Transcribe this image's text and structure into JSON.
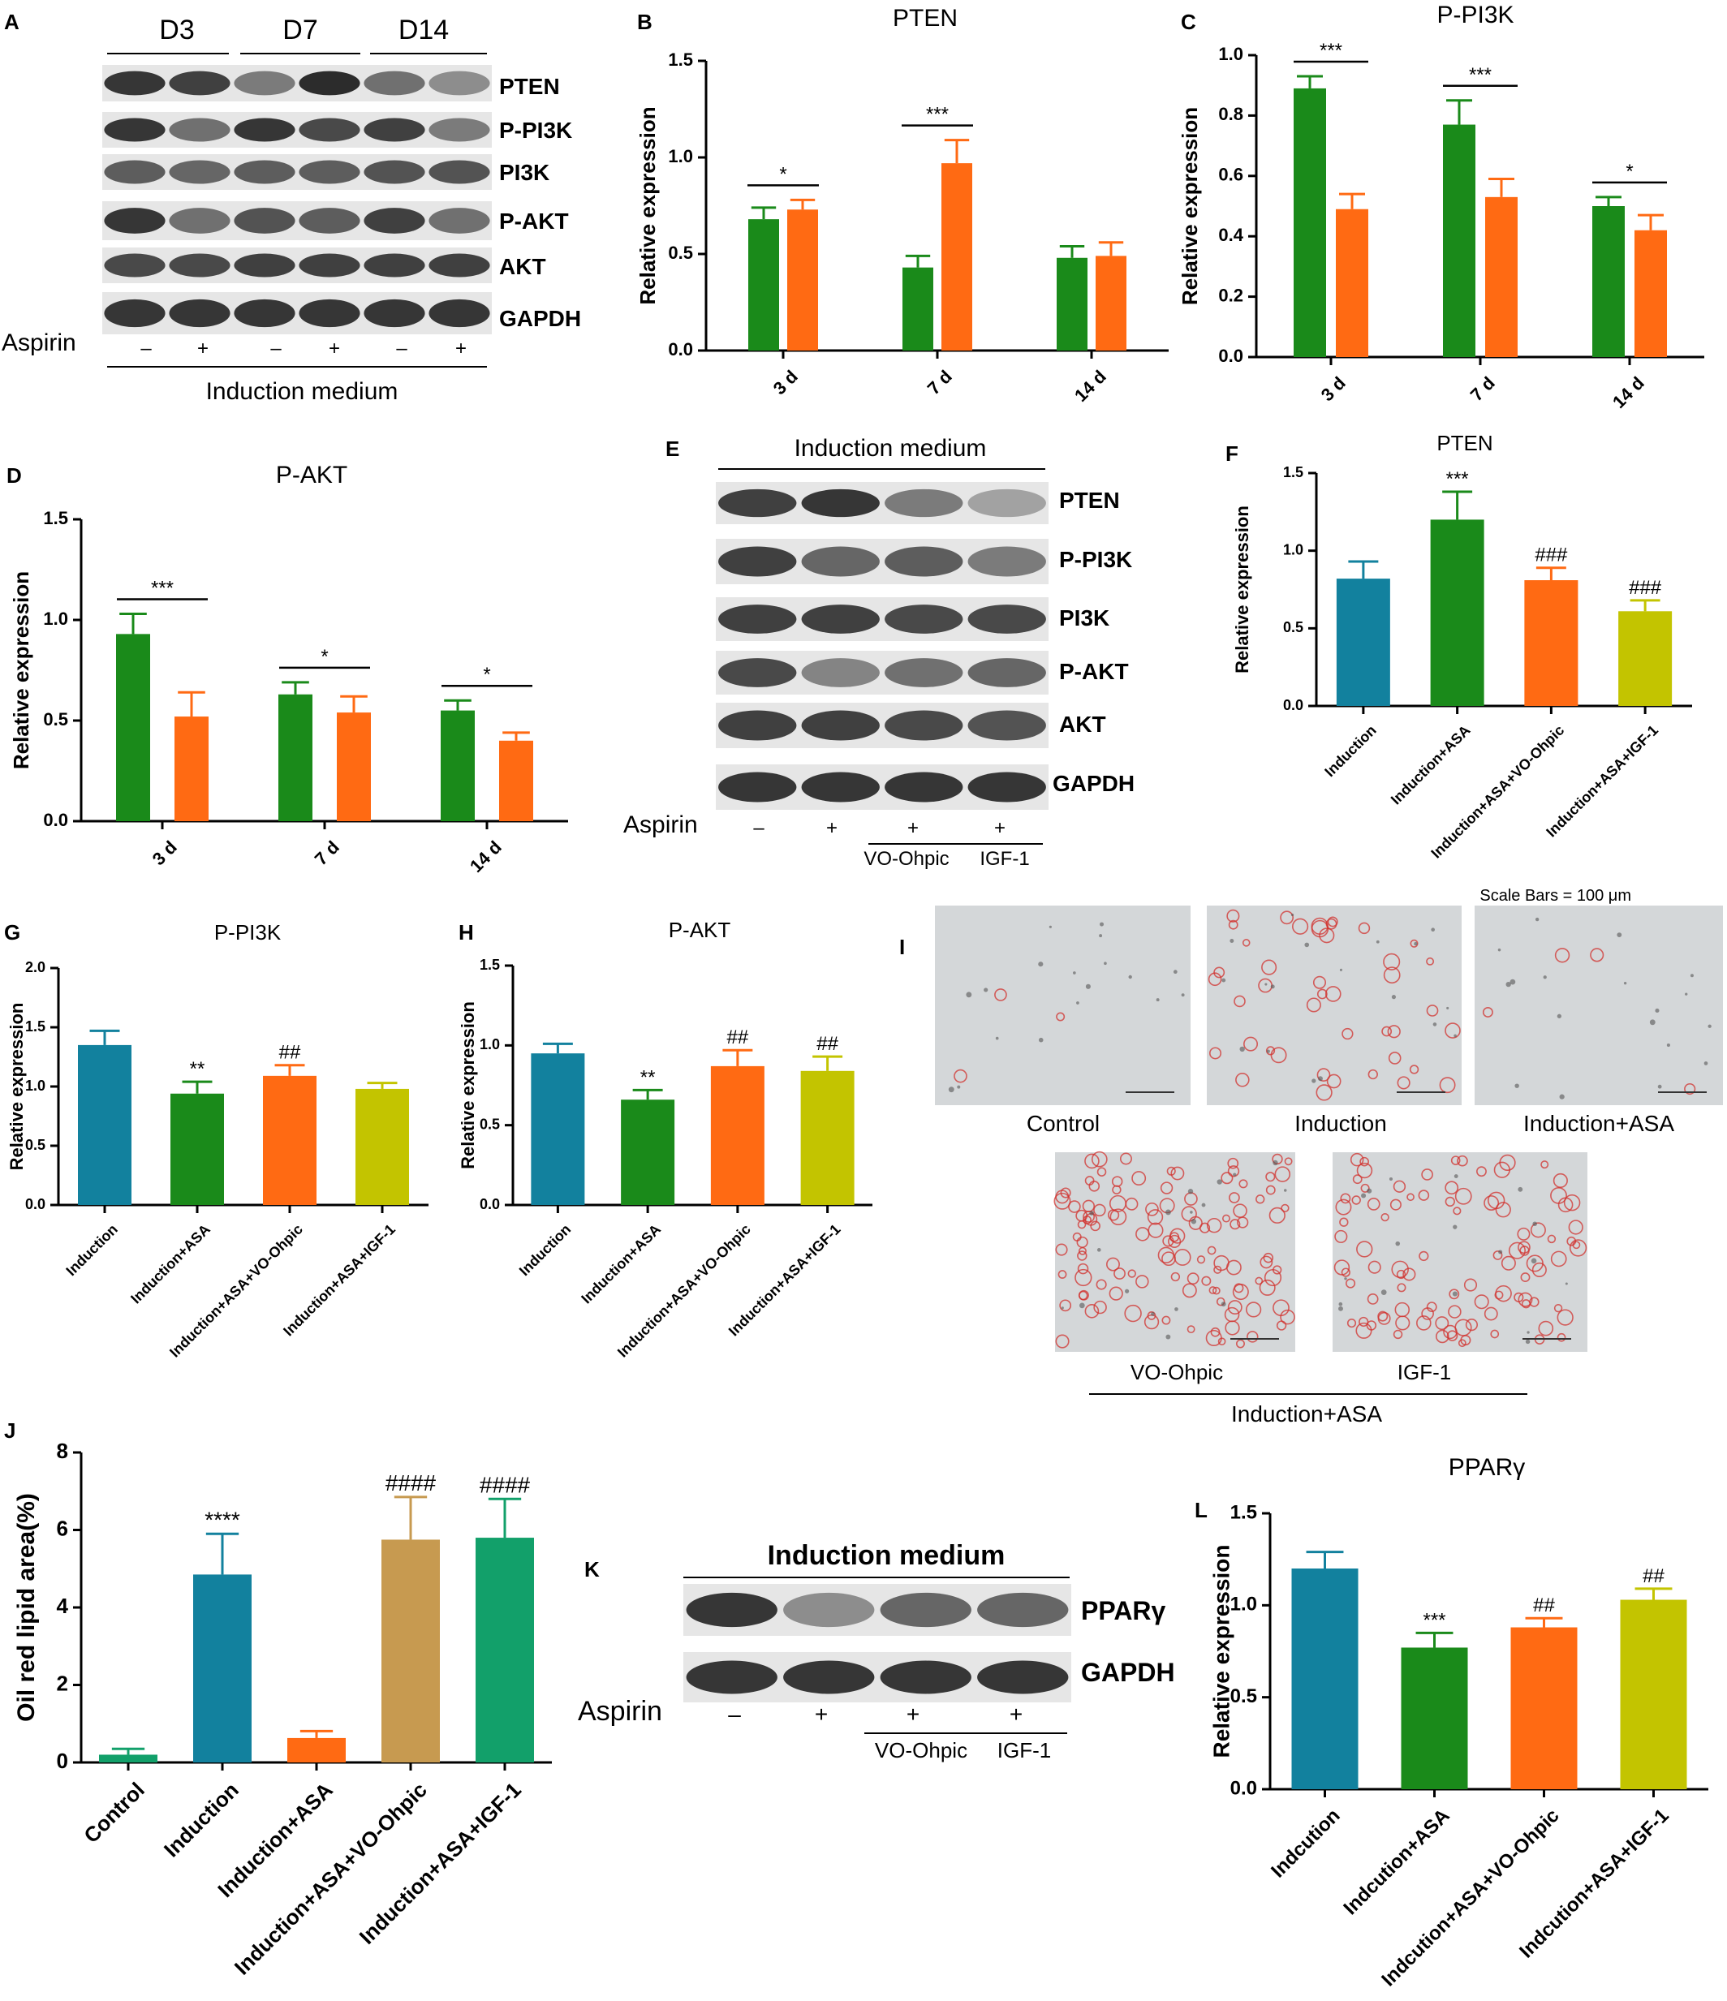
{
  "colors": {
    "green": "#1a8a1a",
    "orange": "#ff6a13",
    "teal": "#12819e",
    "olive": "#c3c400",
    "tan": "#c79a50",
    "seagreen": "#12a06a",
    "blot": "#222222",
    "micro_bg": "#d4d7d9",
    "stain": "#d2322d"
  },
  "panels": {
    "A": "A",
    "B": "B",
    "C": "C",
    "D": "D",
    "E": "E",
    "F": "F",
    "G": "G",
    "H": "H",
    "I": "I",
    "J": "J",
    "K": "K",
    "L": "L"
  },
  "blot_A": {
    "days": [
      "D3",
      "D7",
      "D14"
    ],
    "proteins": [
      "PTEN",
      "P-PI3K",
      "PI3K",
      "P-AKT",
      "AKT",
      "GAPDH"
    ],
    "treatment_label": "Aspirin",
    "signs": [
      "–",
      "+",
      "–",
      "+",
      "–",
      "+"
    ],
    "medium": "Induction medium"
  },
  "blot_E": {
    "medium": "Induction medium",
    "proteins": [
      "PTEN",
      "P-PI3K",
      "PI3K",
      "P-AKT",
      "AKT",
      "GAPDH"
    ],
    "treatment_label": "Aspirin",
    "signs": [
      "–",
      "+",
      "+",
      "+"
    ],
    "inhibitors": [
      "VO-Ohpic",
      "IGF-1"
    ]
  },
  "blot_K": {
    "medium": "Induction medium",
    "proteins": [
      "PPARγ",
      "GAPDH"
    ],
    "treatment_label": "Aspirin",
    "signs": [
      "–",
      "+",
      "+",
      "+"
    ],
    "inhibitors": [
      "VO-Ohpic",
      "IGF-1"
    ]
  },
  "images_I": {
    "scale": "Scale Bars = 100 μm",
    "top": [
      "Control",
      "Induction",
      "Induction+ASA"
    ],
    "bottom": [
      "VO-Ohpic",
      "IGF-1"
    ],
    "bottom_group": "Induction+ASA",
    "stain_density": [
      0.02,
      0.3,
      0.03,
      0.85,
      0.7
    ]
  },
  "chart_data": [
    {
      "panel": "B",
      "type": "bar",
      "title": "PTEN",
      "ylabel": "Relative expression",
      "ylim": [
        0,
        1.5
      ],
      "yticks": [
        "0.0",
        "0.5",
        "1.0",
        "1.5"
      ],
      "categories": [
        "3 d",
        "7 d",
        "14 d"
      ],
      "series": [
        {
          "values": [
            0.68,
            0.43,
            0.48
          ],
          "errors": [
            0.06,
            0.06,
            0.06
          ],
          "color": "green"
        },
        {
          "values": [
            0.73,
            0.97,
            0.49
          ],
          "errors": [
            0.05,
            0.12,
            0.07
          ],
          "color": "orange"
        }
      ],
      "annotations": [
        "*",
        "***",
        ""
      ]
    },
    {
      "panel": "C",
      "type": "bar",
      "title": "P-PI3K",
      "ylabel": "Relative expression",
      "ylim": [
        0,
        1.0
      ],
      "yticks": [
        "0.0",
        "0.2",
        "0.4",
        "0.6",
        "0.8",
        "1.0"
      ],
      "categories": [
        "3 d",
        "7 d",
        "14 d"
      ],
      "series": [
        {
          "values": [
            0.89,
            0.77,
            0.5
          ],
          "errors": [
            0.04,
            0.08,
            0.03
          ],
          "color": "green"
        },
        {
          "values": [
            0.49,
            0.53,
            0.42
          ],
          "errors": [
            0.05,
            0.06,
            0.05
          ],
          "color": "orange"
        }
      ],
      "annotations": [
        "***",
        "***",
        "*"
      ]
    },
    {
      "panel": "D",
      "type": "bar",
      "title": "P-AKT",
      "ylabel": "Relative expression",
      "ylim": [
        0,
        1.5
      ],
      "yticks": [
        "0.0",
        "0.5",
        "1.0",
        "1.5"
      ],
      "categories": [
        "3 d",
        "7 d",
        "14 d"
      ],
      "series": [
        {
          "values": [
            0.93,
            0.63,
            0.55
          ],
          "errors": [
            0.1,
            0.06,
            0.05
          ],
          "color": "green"
        },
        {
          "values": [
            0.52,
            0.54,
            0.4
          ],
          "errors": [
            0.12,
            0.08,
            0.04
          ],
          "color": "orange"
        }
      ],
      "annotations": [
        "***",
        "*",
        "*"
      ]
    },
    {
      "panel": "F",
      "type": "bar",
      "title": "PTEN",
      "ylabel": "Relative expression",
      "ylim": [
        0,
        1.5
      ],
      "yticks": [
        "0.0",
        "0.5",
        "1.0",
        "1.5"
      ],
      "categories": [
        "Induction",
        "Induction+ASA",
        "Induction+ASA+VO-Ohpic",
        "Induction+ASA+IGF-1"
      ],
      "values": [
        0.82,
        1.2,
        0.81,
        0.61
      ],
      "errors": [
        0.11,
        0.18,
        0.08,
        0.07
      ],
      "colors": [
        "teal",
        "green",
        "orange",
        "olive"
      ],
      "annotations": [
        "",
        "***",
        "###",
        "###"
      ]
    },
    {
      "panel": "G",
      "type": "bar",
      "title": "P-PI3K",
      "ylabel": "Relative expression",
      "ylim": [
        0,
        2.0
      ],
      "yticks": [
        "0.0",
        "0.5",
        "1.0",
        "1.5",
        "2.0"
      ],
      "categories": [
        "Induction",
        "Induction+ASA",
        "Induction+ASA+VO-Ohpic",
        "Induction+ASA+IGF-1"
      ],
      "values": [
        1.35,
        0.94,
        1.09,
        0.98
      ],
      "errors": [
        0.12,
        0.1,
        0.09,
        0.05
      ],
      "colors": [
        "teal",
        "green",
        "orange",
        "olive"
      ],
      "annotations": [
        "",
        "**",
        "##",
        ""
      ]
    },
    {
      "panel": "H",
      "type": "bar",
      "title": "P-AKT",
      "ylabel": "Relative expression",
      "ylim": [
        0,
        1.5
      ],
      "yticks": [
        "0.0",
        "0.5",
        "1.0",
        "1.5"
      ],
      "categories": [
        "Induction",
        "Induction+ASA",
        "Induction+ASA+VO-Ohpic",
        "Induction+ASA+IGF-1"
      ],
      "values": [
        0.95,
        0.66,
        0.87,
        0.84
      ],
      "errors": [
        0.06,
        0.06,
        0.1,
        0.09
      ],
      "colors": [
        "teal",
        "green",
        "orange",
        "olive"
      ],
      "annotations": [
        "",
        "**",
        "##",
        "##"
      ]
    },
    {
      "panel": "J",
      "type": "bar",
      "title": "",
      "ylabel": "Oil red lipid area(%)",
      "ylim": [
        0,
        8
      ],
      "yticks": [
        "0",
        "2",
        "4",
        "6",
        "8"
      ],
      "categories": [
        "Control",
        "Induction",
        "Induction+ASA",
        "Induction+ASA+VO-Ohpic",
        "Induction+ASA+IGF-1"
      ],
      "values": [
        0.2,
        4.85,
        0.63,
        5.75,
        5.8
      ],
      "errors": [
        0.15,
        1.05,
        0.18,
        1.1,
        1.0
      ],
      "colors": [
        "seagreen",
        "teal",
        "orange",
        "tan",
        "seagreen"
      ],
      "annotations": [
        "",
        "****",
        "",
        "####",
        "####"
      ]
    },
    {
      "panel": "L",
      "type": "bar",
      "title": "PPARγ",
      "ylabel": "Relative expression",
      "ylim": [
        0,
        1.5
      ],
      "yticks": [
        "0.0",
        "0.5",
        "1.0",
        "1.5"
      ],
      "categories": [
        "Indcution",
        "Indcution+ASA",
        "Indcution+ASA+VO-Ohpic",
        "Indcution+ASA+IGF-1"
      ],
      "values": [
        1.2,
        0.77,
        0.88,
        1.03
      ],
      "errors": [
        0.09,
        0.08,
        0.05,
        0.06
      ],
      "colors": [
        "teal",
        "green",
        "orange",
        "olive"
      ],
      "annotations": [
        "",
        "***",
        "##",
        "##"
      ]
    }
  ]
}
